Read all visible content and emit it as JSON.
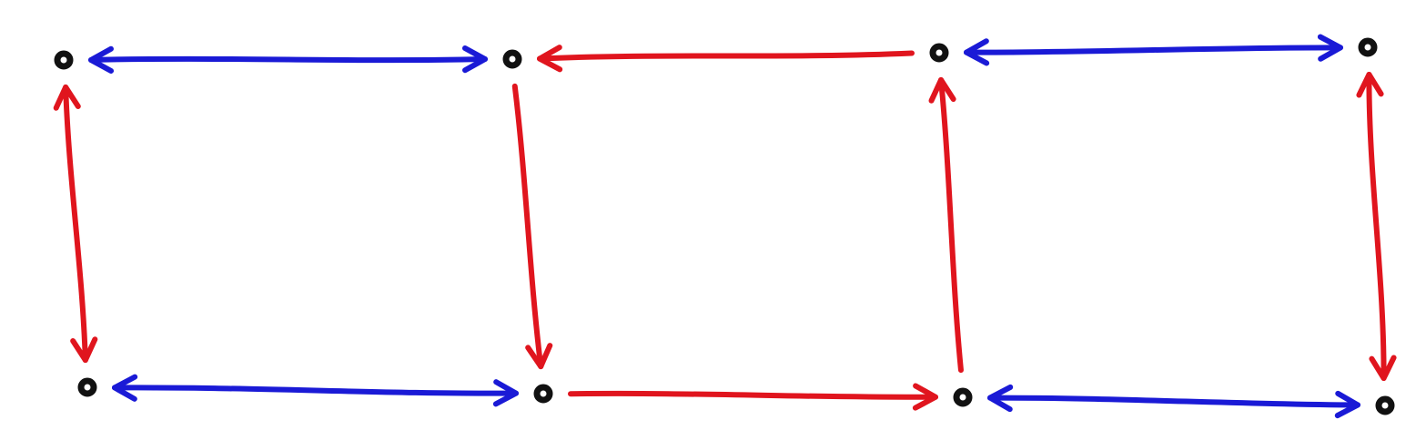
{
  "diagram": {
    "colors": {
      "node": "#111111",
      "bidirectional_edge_blue": "#1a1ad6",
      "red_edge": "#e0151e"
    },
    "nodes": [
      {
        "id": "top-1"
      },
      {
        "id": "top-2"
      },
      {
        "id": "top-3"
      },
      {
        "id": "top-4"
      },
      {
        "id": "bottom-1"
      },
      {
        "id": "bottom-2"
      },
      {
        "id": "bottom-3"
      },
      {
        "id": "bottom-4"
      }
    ],
    "edges": [
      {
        "from": "top-1",
        "to": "top-2",
        "color": "blue",
        "direction": "both"
      },
      {
        "from": "top-3",
        "to": "top-2",
        "color": "red",
        "direction": "forward"
      },
      {
        "from": "top-3",
        "to": "top-4",
        "color": "blue",
        "direction": "both"
      },
      {
        "from": "top-1",
        "to": "bottom-1",
        "color": "red",
        "direction": "both"
      },
      {
        "from": "top-2",
        "to": "bottom-2",
        "color": "red",
        "direction": "forward"
      },
      {
        "from": "bottom-3",
        "to": "top-3",
        "color": "red",
        "direction": "forward"
      },
      {
        "from": "top-4",
        "to": "bottom-4",
        "color": "red",
        "direction": "both"
      },
      {
        "from": "bottom-1",
        "to": "bottom-2",
        "color": "blue",
        "direction": "both"
      },
      {
        "from": "bottom-2",
        "to": "bottom-3",
        "color": "red",
        "direction": "forward"
      },
      {
        "from": "bottom-3",
        "to": "bottom-4",
        "color": "blue",
        "direction": "both"
      }
    ]
  }
}
